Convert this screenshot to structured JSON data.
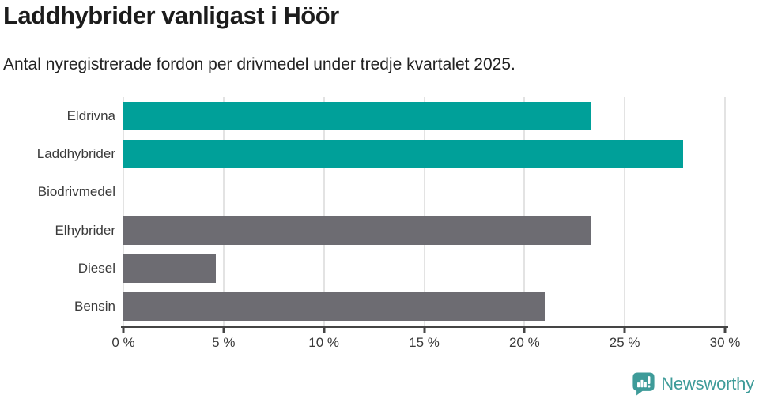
{
  "header": {
    "title": "Laddhybrider vanligast i Höör",
    "subtitle": "Antal nyregistrerade fordon per drivmedel under tredje kvartalet 2025."
  },
  "chart_data": {
    "type": "bar",
    "orientation": "horizontal",
    "title": "Laddhybrider vanligast i Höör",
    "subtitle": "Antal nyregistrerade fordon per drivmedel under tredje kvartalet 2025.",
    "categories": [
      "Eldrivna",
      "Laddhybrider",
      "Biodrivmedel",
      "Elhybrider",
      "Diesel",
      "Bensin"
    ],
    "values": [
      23.3,
      27.9,
      0,
      23.3,
      4.6,
      21.0
    ],
    "unit": "%",
    "xlabel": "",
    "ylabel": "",
    "xlim": [
      0,
      30
    ],
    "x_ticks": [
      0,
      5,
      10,
      15,
      20,
      25,
      30
    ],
    "x_tick_labels": [
      "0 %",
      "5 %",
      "10 %",
      "15 %",
      "20 %",
      "25 %",
      "30 %"
    ],
    "grid": "vertical-light",
    "legend": "none",
    "bar_colors": [
      "#00A099",
      "#00A099",
      "#00A099",
      "#6D6C72",
      "#6D6C72",
      "#6D6C72"
    ]
  },
  "colors": {
    "highlight_teal": "#00A099",
    "neutral_gray": "#6D6C72",
    "gridline": "#E3E3E3",
    "axis": "#454545",
    "title_text": "#1C1C1C",
    "label_text": "#3A3A3A",
    "brand_teal": "#3E9B99"
  },
  "footer": {
    "brand": "Newsworthy"
  },
  "icons": {
    "brand_logo": "newsworthy-speech-bubble-barchart-icon"
  }
}
